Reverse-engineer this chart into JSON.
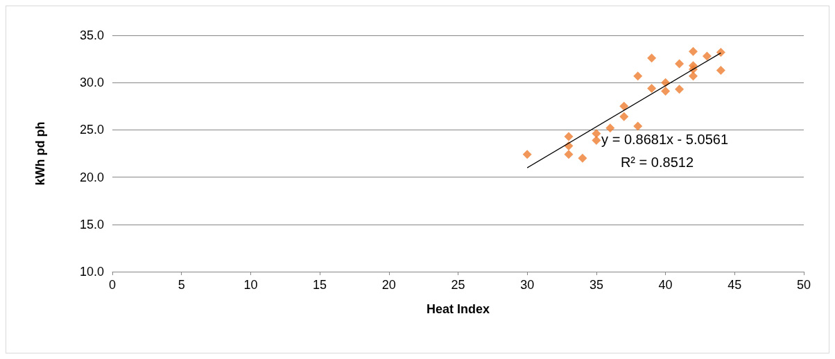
{
  "chart_data": {
    "type": "scatter",
    "xlabel": "Heat Index",
    "ylabel": "kWh pd ph",
    "marker": "diamond",
    "grid": "y",
    "xlim": [
      0,
      50
    ],
    "xticks": [
      0,
      5,
      10,
      15,
      20,
      25,
      30,
      35,
      40,
      45,
      50
    ],
    "ylim": [
      10,
      35
    ],
    "yticks": [
      {
        "value": 10,
        "label": "10.0"
      },
      {
        "value": 15,
        "label": "15.0"
      },
      {
        "value": 20,
        "label": "20.0"
      },
      {
        "value": 25,
        "label": "25.0"
      },
      {
        "value": 30,
        "label": "30.0"
      },
      {
        "value": 35,
        "label": "35.0"
      }
    ],
    "series": [
      {
        "color": "#ed7d31",
        "x": [
          30,
          33,
          33,
          33,
          34,
          35,
          35,
          36,
          37,
          37,
          38,
          38,
          39,
          39,
          40,
          40,
          41,
          41,
          42,
          42,
          42,
          42,
          43,
          44,
          44
        ],
        "values": [
          22.4,
          24.3,
          23.3,
          22.4,
          22.0,
          24.6,
          23.9,
          25.2,
          27.5,
          26.4,
          30.7,
          25.4,
          32.6,
          29.4,
          30.0,
          29.1,
          32.0,
          29.3,
          33.3,
          31.8,
          31.4,
          30.7,
          32.8,
          33.2,
          31.3
        ]
      },
      {
        "type": "line",
        "color": "#000000",
        "marker": "none",
        "x": [
          30,
          44
        ],
        "values": [
          20.99,
          33.14
        ]
      }
    ],
    "annotations": [
      "y = 0.8681x - 5.0561",
      "R² = 0.8512"
    ]
  }
}
